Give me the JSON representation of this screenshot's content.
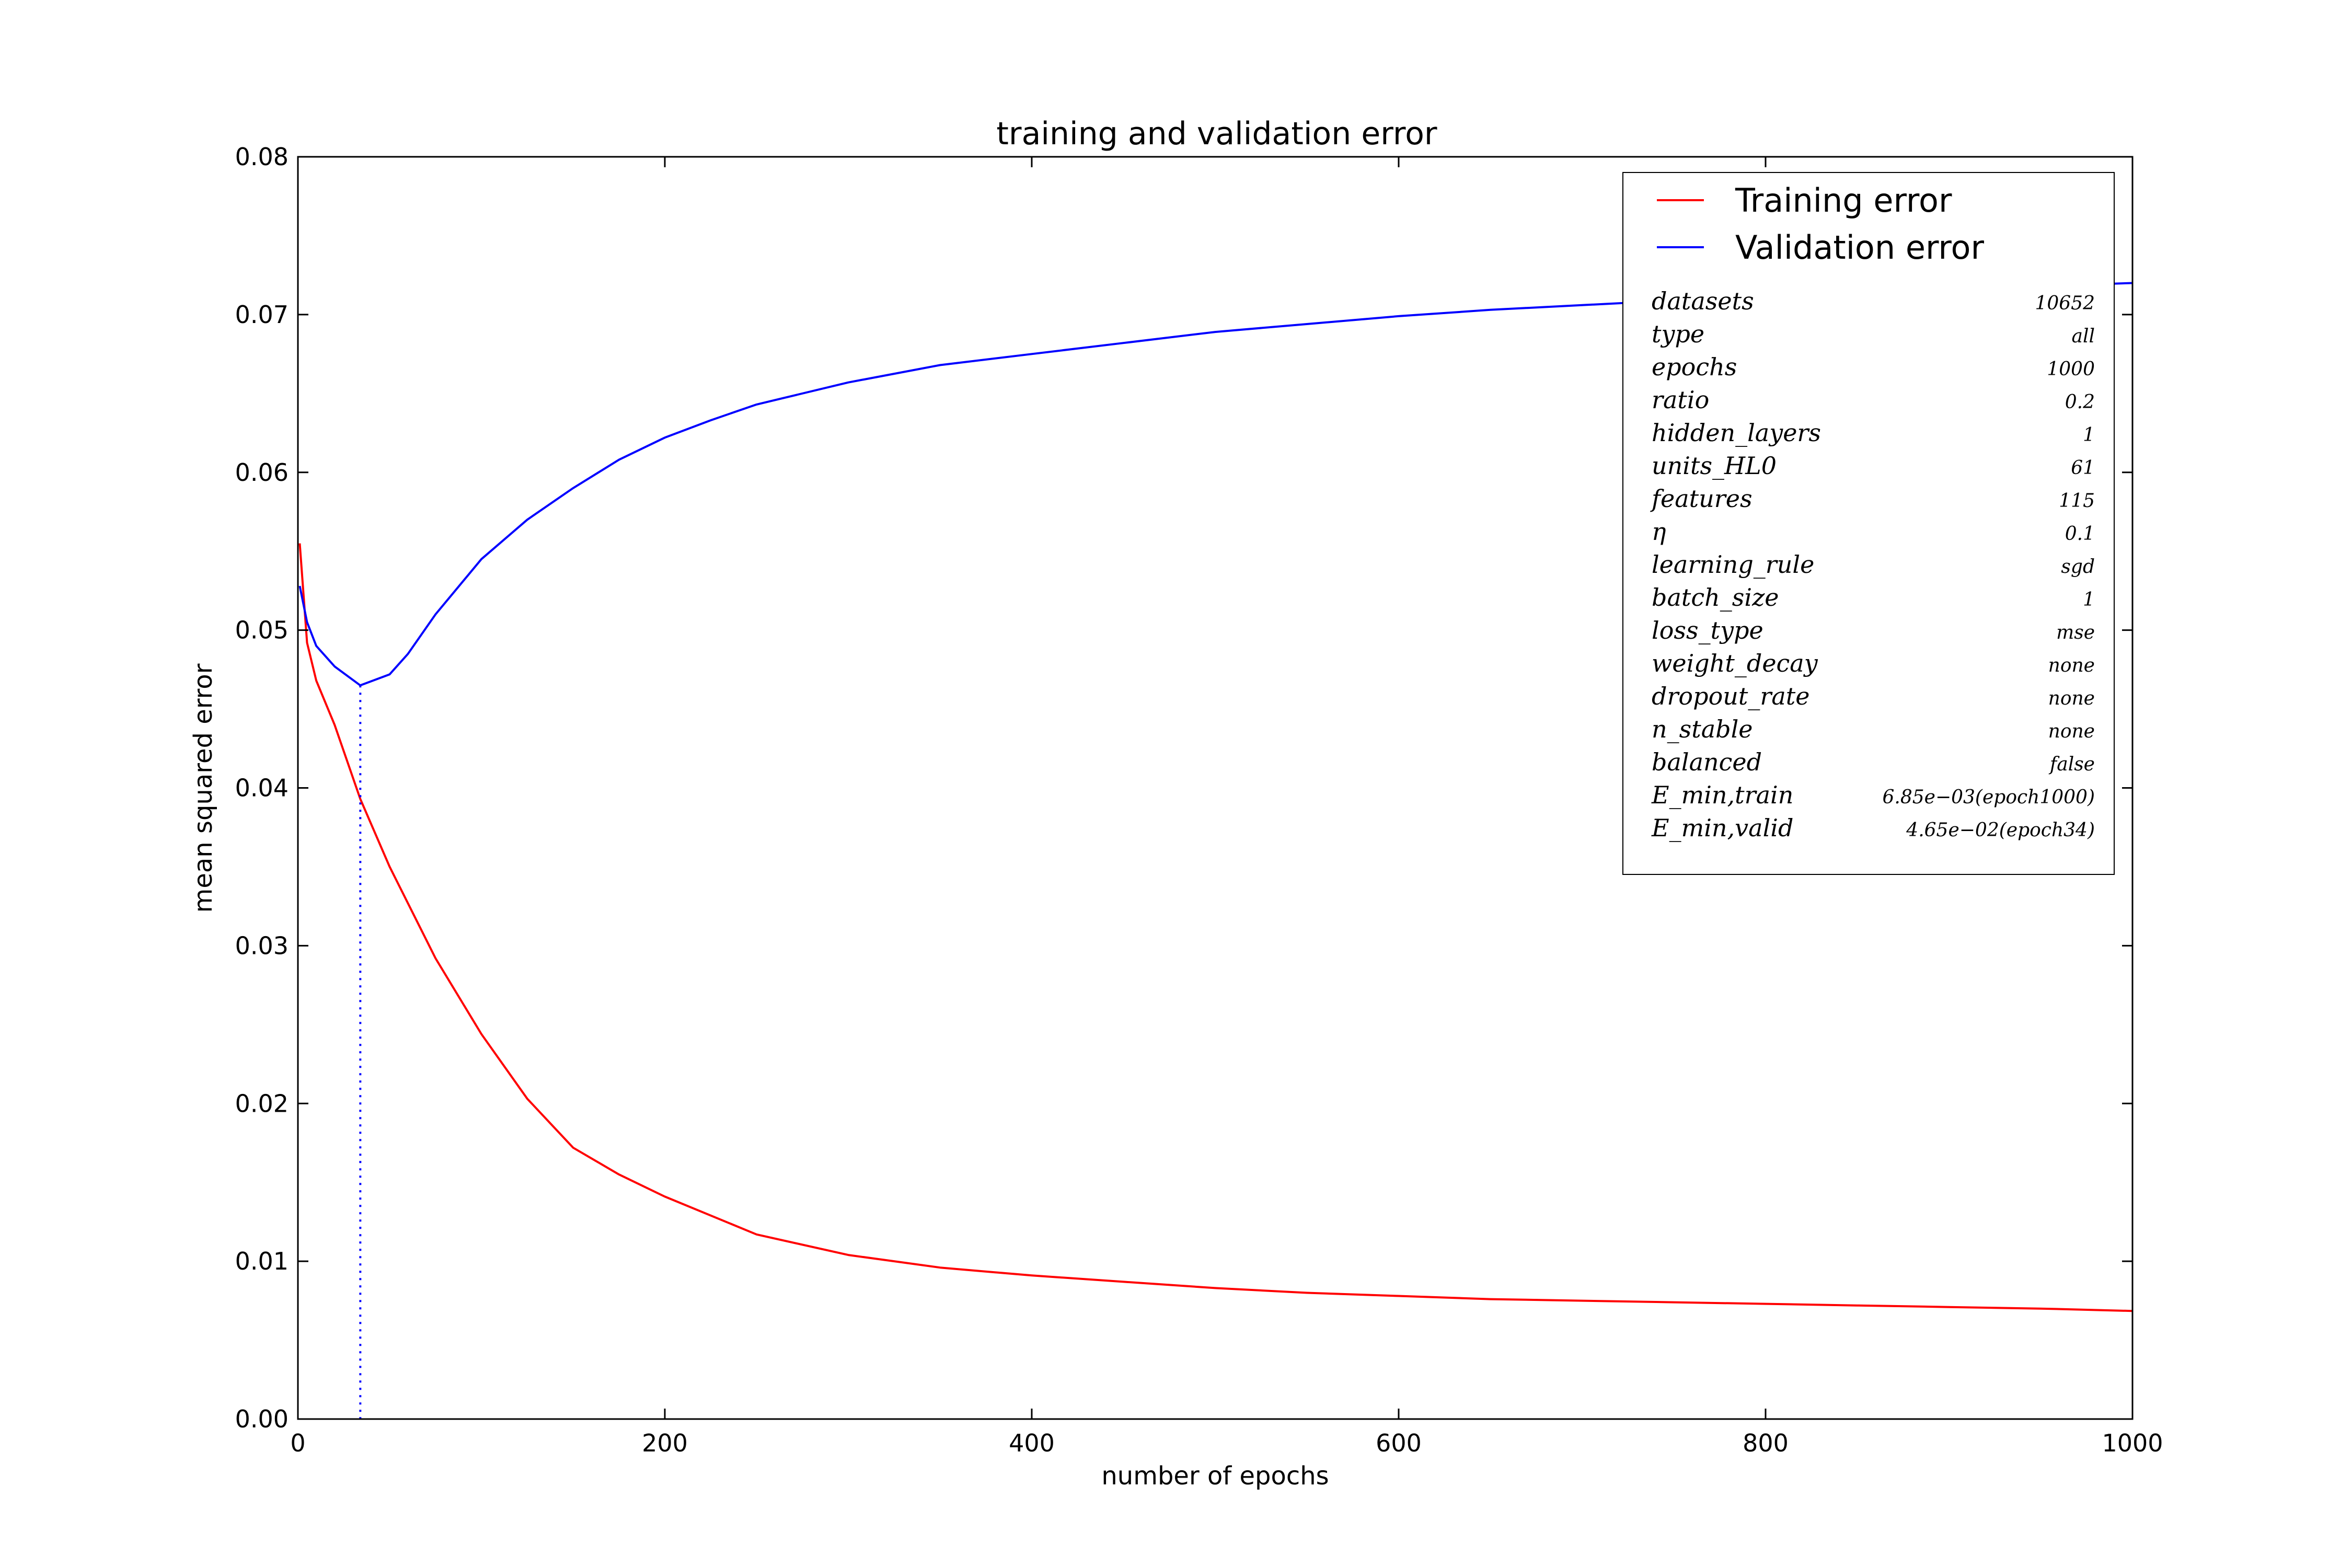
{
  "chart_data": {
    "type": "line",
    "title": "training and validation error",
    "xlabel": "number of epochs",
    "ylabel": "mean squared error",
    "xlim": [
      0,
      1000
    ],
    "ylim": [
      0,
      0.08
    ],
    "x_ticks": [
      "0",
      "200",
      "400",
      "600",
      "800",
      "1000"
    ],
    "y_ticks": [
      "0.00",
      "0.01",
      "0.02",
      "0.03",
      "0.04",
      "0.05",
      "0.06",
      "0.07",
      "0.08"
    ],
    "grid": false,
    "legend_position": "top-right",
    "series": [
      {
        "name": "Training error",
        "color": "#ff0000",
        "x": [
          1,
          5,
          10,
          20,
          34,
          50,
          75,
          100,
          125,
          150,
          175,
          200,
          250,
          300,
          350,
          400,
          450,
          500,
          550,
          600,
          650,
          700,
          750,
          800,
          850,
          900,
          950,
          1000
        ],
        "values": [
          0.0555,
          0.0492,
          0.0468,
          0.044,
          0.0393,
          0.035,
          0.0292,
          0.0244,
          0.0203,
          0.0172,
          0.0155,
          0.0141,
          0.0117,
          0.0104,
          0.0096,
          0.0091,
          0.0087,
          0.0083,
          0.008,
          0.0078,
          0.0076,
          0.0075,
          0.0074,
          0.0073,
          0.0072,
          0.0071,
          0.007,
          0.00685
        ]
      },
      {
        "name": "Validation error",
        "color": "#0000ff",
        "x": [
          1,
          5,
          10,
          20,
          34,
          50,
          60,
          75,
          100,
          125,
          150,
          175,
          200,
          225,
          250,
          300,
          350,
          400,
          450,
          500,
          550,
          600,
          650,
          700,
          750,
          800,
          850,
          900,
          950,
          1000
        ],
        "values": [
          0.0528,
          0.0505,
          0.049,
          0.0477,
          0.0465,
          0.0472,
          0.0485,
          0.051,
          0.0545,
          0.057,
          0.059,
          0.0608,
          0.0622,
          0.0633,
          0.0643,
          0.0657,
          0.0668,
          0.0675,
          0.0682,
          0.0689,
          0.0694,
          0.0699,
          0.0703,
          0.0706,
          0.0709,
          0.0712,
          0.0714,
          0.0716,
          0.0718,
          0.072
        ]
      }
    ],
    "min_marker": {
      "epoch": 34,
      "value": 0.0465,
      "color": "#0000ff"
    },
    "params": [
      {
        "key": "datasets",
        "value": "10652",
        "color": "#000000"
      },
      {
        "key": "type",
        "value": "all",
        "color": "#000000"
      },
      {
        "key": "epochs",
        "value": "1000",
        "color": "#000000"
      },
      {
        "key": "ratio",
        "value": "0.2",
        "color": "#000000"
      },
      {
        "key": "hidden_layers",
        "value": "1",
        "color": "#000000"
      },
      {
        "key": "units_HL0",
        "value": "61",
        "color": "#000000"
      },
      {
        "key": "features",
        "value": "115",
        "color": "#000000"
      },
      {
        "key": "η",
        "value": "0.1",
        "color": "#000000"
      },
      {
        "key": "learning_rule",
        "value": "sgd",
        "color": "#000000"
      },
      {
        "key": "batch_size",
        "value": "1",
        "color": "#000000"
      },
      {
        "key": "loss_type",
        "value": "mse",
        "color": "#000000"
      },
      {
        "key": "weight_decay",
        "value": "none",
        "color": "#000000"
      },
      {
        "key": "dropout_rate",
        "value": "none",
        "color": "#000000"
      },
      {
        "key": "n_stable",
        "value": "none",
        "color": "#000000"
      },
      {
        "key": "balanced",
        "value": "false",
        "color": "#000000"
      },
      {
        "key": "E_min,train",
        "value": "6.85e−03(epoch1000)",
        "color": "#ff0000"
      },
      {
        "key": "E_min,valid",
        "value": "4.65e−02(epoch34)",
        "color": "#0000ff"
      }
    ]
  }
}
